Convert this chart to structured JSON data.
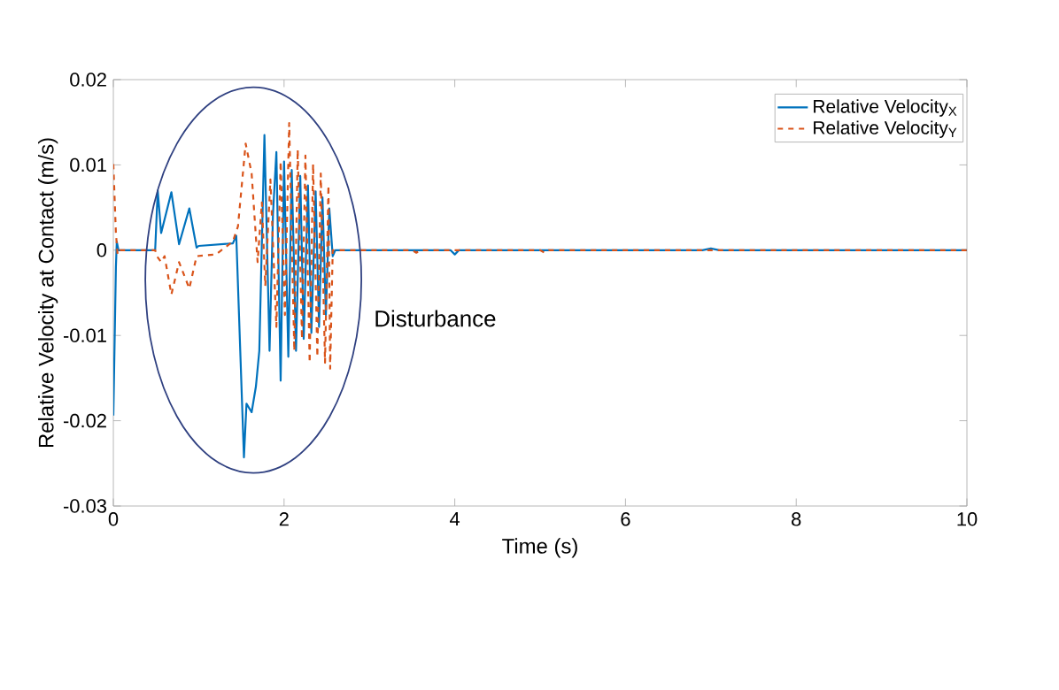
{
  "chart_data": {
    "type": "line",
    "xlabel": "Time (s)",
    "ylabel": "Relative Velocity at Contact (m/s)",
    "xlim": [
      0,
      10
    ],
    "ylim": [
      -0.03,
      0.02
    ],
    "xticks": [
      0,
      2,
      4,
      6,
      8,
      10
    ],
    "yticks": [
      -0.03,
      -0.02,
      -0.01,
      0,
      0.01,
      0.02
    ],
    "grid": false,
    "legend": "top right",
    "marker": "none",
    "annotations": [
      "Disturbance"
    ],
    "series": [
      {
        "name": "Relative Velocity$_{X}$",
        "color": "#0072bd",
        "line_style": "solid",
        "x": [
          0,
          0.03,
          0.04,
          0.06,
          0.49,
          0.52,
          0.56,
          0.68,
          0.77,
          0.89,
          0.975,
          1.0,
          1.4,
          1.44,
          1.53,
          1.56,
          1.62,
          1.67,
          1.71,
          1.77,
          1.83,
          1.87,
          1.91,
          1.96,
          2.0,
          2.05,
          2.09,
          2.14,
          2.19,
          2.23,
          2.28,
          2.32,
          2.37,
          2.41,
          2.45,
          2.49,
          2.53,
          2.57,
          2.6,
          3.95,
          4.0,
          4.05,
          6.9,
          7.0,
          7.1,
          10
        ],
        "values": [
          -0.0194,
          -0.002,
          0.001,
          0,
          0,
          0.007,
          0.002,
          0.0068,
          0.0007,
          0.0049,
          0.0003,
          0.0005,
          0.0008,
          0.0017,
          -0.0243,
          -0.018,
          -0.019,
          -0.016,
          -0.0118,
          0.0135,
          -0.0118,
          0.0042,
          0.0115,
          -0.0153,
          0.0104,
          -0.0125,
          0.0094,
          -0.0118,
          0.0087,
          -0.0104,
          0.0076,
          -0.0097,
          0.0069,
          -0.009,
          0.0062,
          -0.0076,
          0.0049,
          -0.0007,
          0,
          0,
          -0.0005,
          0,
          0,
          0.0002,
          0,
          0
        ]
      },
      {
        "name": "Relative Velocity$_{Y}$",
        "color": "#d95319",
        "line_style": "dashed",
        "x": [
          0,
          0.03,
          0.05,
          0.08,
          0.49,
          0.51,
          0.56,
          0.6,
          0.68,
          0.77,
          0.89,
          0.975,
          1.2,
          1.4,
          1.46,
          1.55,
          1.62,
          1.69,
          1.74,
          1.78,
          1.84,
          1.91,
          1.96,
          2.01,
          2.06,
          2.12,
          2.16,
          2.21,
          2.25,
          2.3,
          2.34,
          2.39,
          2.43,
          2.48,
          2.52,
          2.54,
          2.57,
          2.6,
          3.5,
          3.55,
          3.6,
          5.0,
          5.05,
          5.1,
          10
        ],
        "values": [
          0.0101,
          0.002,
          -0.0005,
          0,
          0,
          -0.0007,
          -0.0014,
          -0.0007,
          -0.0052,
          -0.0014,
          -0.0045,
          -0.0007,
          -0.0005,
          0.001,
          0.0028,
          0.0125,
          0.009,
          -0.0014,
          0.0056,
          -0.0042,
          0.0083,
          -0.009,
          0.0104,
          -0.0076,
          0.0149,
          -0.0118,
          0.0118,
          -0.0104,
          0.0111,
          -0.0132,
          0.0101,
          -0.0125,
          0.009,
          -0.0132,
          0.0076,
          -0.0139,
          0,
          0,
          0,
          -0.0003,
          0,
          0,
          -0.0003,
          0,
          0
        ]
      }
    ]
  }
}
